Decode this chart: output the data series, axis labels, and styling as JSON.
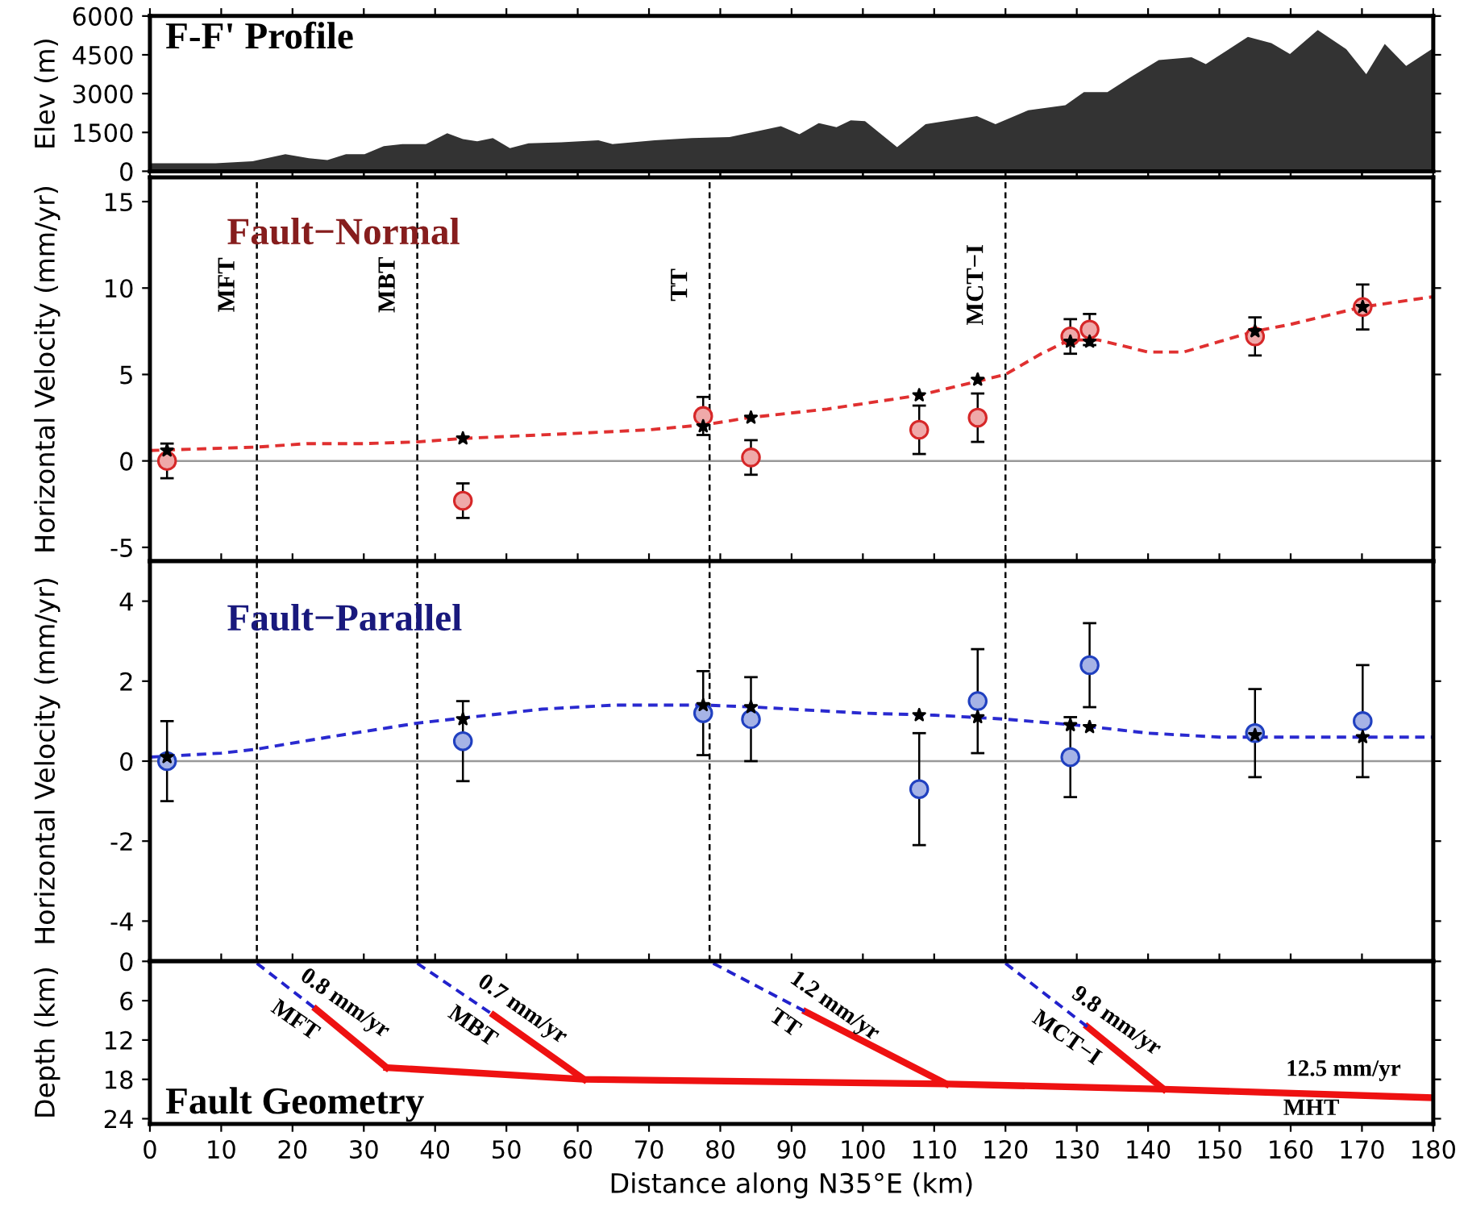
{
  "chart_data": [
    {
      "type": "area",
      "title": "F-F' Profile",
      "ylabel": "Elev (m)",
      "color": "#333333",
      "x": [
        0,
        9.2,
        14.4,
        19.0,
        22.3,
        24.9,
        27.5,
        30.1,
        32.8,
        35.4,
        38.7,
        41.7,
        43.9,
        45.9,
        48.1,
        50.5,
        53.1,
        57.7,
        62.9,
        64.9,
        70.8,
        76.0,
        81.3,
        85.2,
        88.5,
        91.1,
        93.8,
        96.3,
        98.3,
        100.3,
        104.8,
        108.8,
        116.0,
        118.6,
        123.2,
        128.4,
        131.0,
        134.3,
        137.6,
        141.5,
        146.1,
        148.1,
        154.0,
        157.3,
        159.9,
        163.8,
        167.8,
        170.6,
        173.2,
        176.2,
        180
      ],
      "values": [
        310,
        310,
        390,
        660,
        500,
        430,
        660,
        660,
        970,
        1050,
        1050,
        1470,
        1240,
        1160,
        1280,
        890,
        1080,
        1120,
        1200,
        1050,
        1200,
        1280,
        1320,
        1550,
        1740,
        1430,
        1860,
        1700,
        1970,
        1940,
        930,
        1820,
        2130,
        1820,
        2360,
        2550,
        3060,
        3060,
        3640,
        4300,
        4410,
        4140,
        5190,
        4950,
        4530,
        5460,
        4720,
        3750,
        4920,
        4070,
        4760
      ],
      "xlim": [
        0,
        180
      ],
      "xticks": [
        0,
        10,
        20,
        30,
        40,
        50,
        60,
        70,
        80,
        90,
        100,
        110,
        120,
        130,
        140,
        150,
        160,
        170,
        180
      ],
      "ylim": [
        0,
        6000
      ],
      "yticks": [
        0,
        1500,
        3000,
        4500,
        6000
      ],
      "tick_labels": "y",
      "grid": false,
      "legend": false
    },
    {
      "type": "scatter",
      "title": "Fault−Normal",
      "ylabel": "Horizontal Velocity (mm/yr)",
      "series": [
        {
          "type": "line",
          "color": "#e03030",
          "line_style": "dashed",
          "marker": "none",
          "x": [
            0,
            15,
            22,
            30,
            37.5,
            44,
            60,
            70,
            78,
            84,
            95,
            108,
            116,
            120,
            125,
            129,
            133,
            140,
            145,
            150,
            155,
            160,
            170,
            180
          ],
          "values": [
            0.6,
            0.8,
            1.0,
            1.0,
            1.1,
            1.3,
            1.6,
            1.8,
            2.1,
            2.5,
            3.0,
            3.8,
            4.6,
            5.0,
            6.2,
            7.0,
            7.0,
            6.3,
            6.3,
            6.9,
            7.5,
            7.9,
            8.9,
            9.5
          ]
        },
        {
          "type": "scatter",
          "color": "#d62728",
          "marker": "circle",
          "x": [
            2.4,
            43.9,
            77.6,
            84.3,
            107.9,
            116.1,
            129.1,
            131.8,
            155.0,
            170.1
          ],
          "values": [
            0.0,
            -2.3,
            2.6,
            0.2,
            1.8,
            2.5,
            7.2,
            7.6,
            7.2,
            8.9
          ],
          "errors": [
            1.0,
            1.0,
            1.1,
            1.0,
            1.4,
            1.4,
            1.0,
            0.9,
            1.1,
            1.3
          ]
        },
        {
          "type": "scatter",
          "color": "#000000",
          "marker": "star",
          "x": [
            2.4,
            43.9,
            77.6,
            84.3,
            107.9,
            116.1,
            129.1,
            131.8,
            155.0,
            170.1
          ],
          "values": [
            0.6,
            1.3,
            2.0,
            2.5,
            3.8,
            4.7,
            6.9,
            6.9,
            7.5,
            8.9
          ]
        }
      ],
      "ref_lines": [
        {
          "axis": "y",
          "value": 0,
          "color": "#999999",
          "line_style": "solid"
        },
        {
          "axis": "x",
          "value": 15,
          "label": "MFT",
          "color": "#000000",
          "line_style": "dashed"
        },
        {
          "axis": "x",
          "value": 37.5,
          "label": "MBT",
          "color": "#000000",
          "line_style": "dashed"
        },
        {
          "axis": "x",
          "value": 78.5,
          "label": "TT",
          "color": "#000000",
          "line_style": "dashed"
        },
        {
          "axis": "x",
          "value": 120,
          "label": "MCT−I",
          "color": "#000000",
          "line_style": "dashed"
        }
      ],
      "xlim": [
        0,
        180
      ],
      "xticks": [
        0,
        10,
        20,
        30,
        40,
        50,
        60,
        70,
        80,
        90,
        100,
        110,
        120,
        130,
        140,
        150,
        160,
        170,
        180
      ],
      "ylim": [
        -5.8,
        16.4
      ],
      "yticks": [
        -5,
        0,
        5,
        10,
        15
      ],
      "tick_labels": "y",
      "grid": false,
      "legend": false
    },
    {
      "type": "scatter",
      "title": "Fault−Parallel",
      "ylabel": "Horizontal Velocity (mm/yr)",
      "series": [
        {
          "type": "line",
          "color": "#2a2ad0",
          "line_style": "dashed",
          "marker": "none",
          "x": [
            0,
            10,
            15,
            25,
            37.5,
            45,
            55,
            65,
            78,
            85,
            100,
            110,
            120,
            130,
            140,
            150,
            160,
            180
          ],
          "values": [
            0.1,
            0.2,
            0.3,
            0.6,
            0.95,
            1.1,
            1.3,
            1.4,
            1.4,
            1.35,
            1.2,
            1.15,
            1.05,
            0.9,
            0.7,
            0.6,
            0.6,
            0.6
          ]
        },
        {
          "type": "scatter",
          "color": "#2040c0",
          "marker": "circle",
          "x": [
            2.4,
            43.9,
            77.6,
            84.3,
            107.9,
            116.1,
            129.1,
            131.8,
            155.0,
            170.1
          ],
          "values": [
            0.0,
            0.5,
            1.2,
            1.05,
            -0.7,
            1.5,
            0.1,
            2.4,
            0.7,
            1.0
          ],
          "errors": [
            1.0,
            1.0,
            1.05,
            1.05,
            1.4,
            1.3,
            1.0,
            1.05,
            1.1,
            1.4
          ]
        },
        {
          "type": "scatter",
          "color": "#000000",
          "marker": "star",
          "x": [
            2.4,
            43.9,
            77.6,
            84.3,
            107.9,
            116.1,
            129.1,
            131.8,
            155.0,
            170.1
          ],
          "values": [
            0.1,
            1.05,
            1.4,
            1.35,
            1.15,
            1.1,
            0.9,
            0.85,
            0.65,
            0.6
          ]
        }
      ],
      "ref_lines": [
        {
          "axis": "y",
          "value": 0,
          "color": "#999999",
          "line_style": "solid"
        },
        {
          "axis": "x",
          "value": 15,
          "color": "#000000",
          "line_style": "dashed"
        },
        {
          "axis": "x",
          "value": 37.5,
          "color": "#000000",
          "line_style": "dashed"
        },
        {
          "axis": "x",
          "value": 78.5,
          "color": "#000000",
          "line_style": "dashed"
        },
        {
          "axis": "x",
          "value": 120,
          "color": "#000000",
          "line_style": "dashed"
        }
      ],
      "xlim": [
        0,
        180
      ],
      "xticks": [
        0,
        10,
        20,
        30,
        40,
        50,
        60,
        70,
        80,
        90,
        100,
        110,
        120,
        130,
        140,
        150,
        160,
        170,
        180
      ],
      "ylim": [
        -5,
        5
      ],
      "yticks": [
        -4,
        -2,
        0,
        2,
        4
      ],
      "tick_labels": "y",
      "grid": false,
      "legend": false
    },
    {
      "type": "line",
      "title": "Fault Geometry",
      "ylabel": "Depth (km)",
      "xlabel": "Distance along N35°E (km)",
      "series": [
        {
          "color": "#ee1111",
          "line_style": "solid",
          "x": [
            33.2,
            60.9,
            111.7,
            142.2,
            180
          ],
          "values": [
            16.2,
            18.0,
            18.7,
            19.5,
            20.8
          ]
        },
        {
          "color": "#ee1111",
          "line_style": "solid",
          "x": [
            23.3,
            33.2
          ],
          "values": [
            7.3,
            16.2
          ]
        },
        {
          "color": "#ee1111",
          "line_style": "solid",
          "x": [
            48.2,
            60.9
          ],
          "values": [
            8.2,
            18.0
          ]
        },
        {
          "color": "#ee1111",
          "line_style": "solid",
          "x": [
            92.0,
            111.7
          ],
          "values": [
            7.7,
            18.7
          ]
        },
        {
          "color": "#ee1111",
          "line_style": "solid",
          "x": [
            131.5,
            142.2
          ],
          "values": [
            10.0,
            19.5
          ]
        },
        {
          "color": "#2222cc",
          "line_style": "dashed",
          "x": [
            15,
            23.3
          ],
          "values": [
            0.3,
            7.3
          ]
        },
        {
          "color": "#2222cc",
          "line_style": "dashed",
          "x": [
            37.5,
            48.2
          ],
          "values": [
            0.3,
            8.2
          ]
        },
        {
          "color": "#2222cc",
          "line_style": "dashed",
          "x": [
            79,
            92.0
          ],
          "values": [
            0.3,
            7.7
          ]
        },
        {
          "color": "#2222cc",
          "line_style": "dashed",
          "x": [
            120,
            131.5
          ],
          "values": [
            0.3,
            10.0
          ]
        }
      ],
      "annotations": [
        "0.8 mm/yr",
        "MFT",
        "0.7 mm/yr",
        "MBT",
        "1.2 mm/yr",
        "TT",
        "9.8 mm/yr",
        "MCT−I",
        "12.5 mm/yr",
        "MHT"
      ],
      "xlim": [
        0,
        180
      ],
      "xticks": [
        0,
        10,
        20,
        30,
        40,
        50,
        60,
        70,
        80,
        90,
        100,
        110,
        120,
        130,
        140,
        150,
        160,
        170,
        180
      ],
      "ylim": [
        24.8,
        0
      ],
      "yticks": [
        0,
        6,
        12,
        18,
        24
      ],
      "grid": false,
      "legend": false
    }
  ]
}
